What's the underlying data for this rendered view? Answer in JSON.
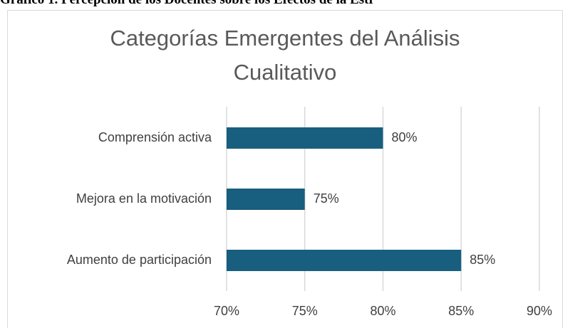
{
  "caption": "Gráfico 1. Percepción de los Docentes sobre los Efectos de la Estr",
  "chart_data": {
    "type": "bar",
    "orientation": "horizontal",
    "title": "Categorías Emergentes del Análisis Cualitativo",
    "categories": [
      "Comprensión activa",
      "Mejora en la motivación",
      "Aumento de participación"
    ],
    "values": [
      80,
      75,
      85
    ],
    "value_labels": [
      "80%",
      "75%",
      "85%"
    ],
    "color": "#175e7f",
    "xlim": [
      70,
      90
    ],
    "xticks": [
      {
        "value": 70,
        "label": "70%"
      },
      {
        "value": 75,
        "label": "75%"
      },
      {
        "value": 80,
        "label": "80%"
      },
      {
        "value": 85,
        "label": "85%"
      },
      {
        "value": 90,
        "label": "90%"
      }
    ],
    "grid": true
  }
}
